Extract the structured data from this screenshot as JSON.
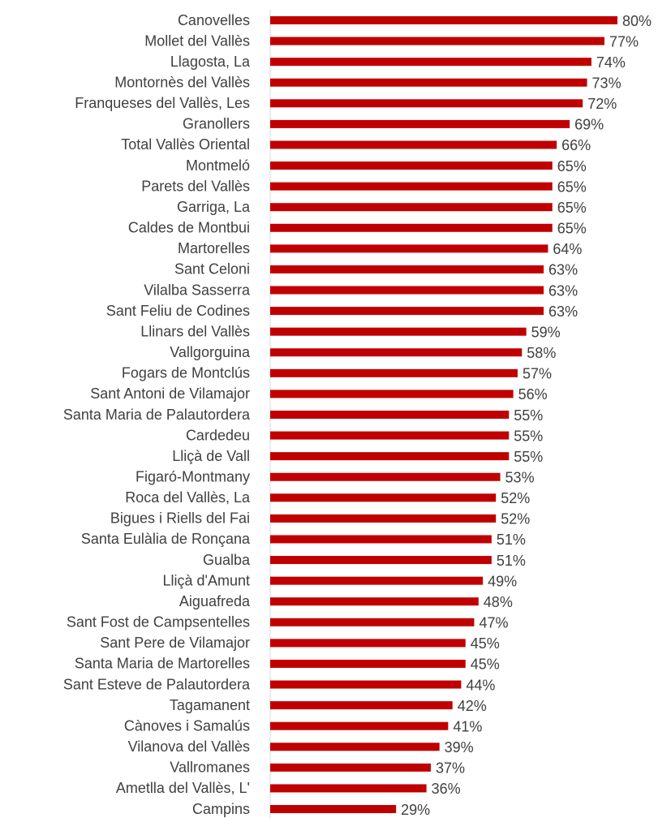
{
  "chart_data": {
    "type": "bar",
    "orientation": "horizontal",
    "color": "#c00000",
    "categories": [
      "Canovelles",
      "Mollet del Vallès",
      "Llagosta, La",
      "Montornès del Vallès",
      "Franqueses del Vallès, Les",
      "Granollers",
      "Total Vallès Oriental",
      "Montmeló",
      "Parets del Vallès",
      "Garriga, La",
      "Caldes de Montbui",
      "Martorelles",
      "Sant Celoni",
      "Vilalba Sasserra",
      "Sant Feliu de Codines",
      "Llinars del Vallès",
      "Vallgorguina",
      "Fogars de Montclús",
      "Sant Antoni de Vilamajor",
      "Santa Maria de Palautordera",
      "Cardedeu",
      "Lliçà de Vall",
      "Figaró-Montmany",
      "Roca del Vallès, La",
      "Bigues i Riells del Fai",
      "Santa Eulàlia de Ronçana",
      "Gualba",
      "Lliçà d'Amunt",
      "Aiguafreda",
      "Sant Fost de Campsentelles",
      "Sant Pere de Vilamajor",
      "Santa Maria de Martorelles",
      "Sant Esteve de Palautordera",
      "Tagamanent",
      "Cànoves i Samalús",
      "Vilanova del Vallès",
      "Vallromanes",
      "Ametlla del Vallès, L'",
      "Campins"
    ],
    "values": [
      80,
      77,
      74,
      73,
      72,
      69,
      66,
      65,
      65,
      65,
      65,
      64,
      63,
      63,
      63,
      59,
      58,
      57,
      56,
      55,
      55,
      55,
      53,
      52,
      52,
      51,
      51,
      49,
      48,
      47,
      45,
      45,
      44,
      42,
      41,
      39,
      37,
      36,
      29
    ],
    "value_labels": [
      "80%",
      "77%",
      "74%",
      "73%",
      "72%",
      "69%",
      "66%",
      "65%",
      "65%",
      "65%",
      "65%",
      "64%",
      "63%",
      "63%",
      "63%",
      "59%",
      "58%",
      "57%",
      "56%",
      "55%",
      "55%",
      "55%",
      "53%",
      "52%",
      "52%",
      "51%",
      "51%",
      "49%",
      "48%",
      "47%",
      "45%",
      "45%",
      "44%",
      "42%",
      "41%",
      "39%",
      "37%",
      "36%",
      "29%"
    ]
  }
}
